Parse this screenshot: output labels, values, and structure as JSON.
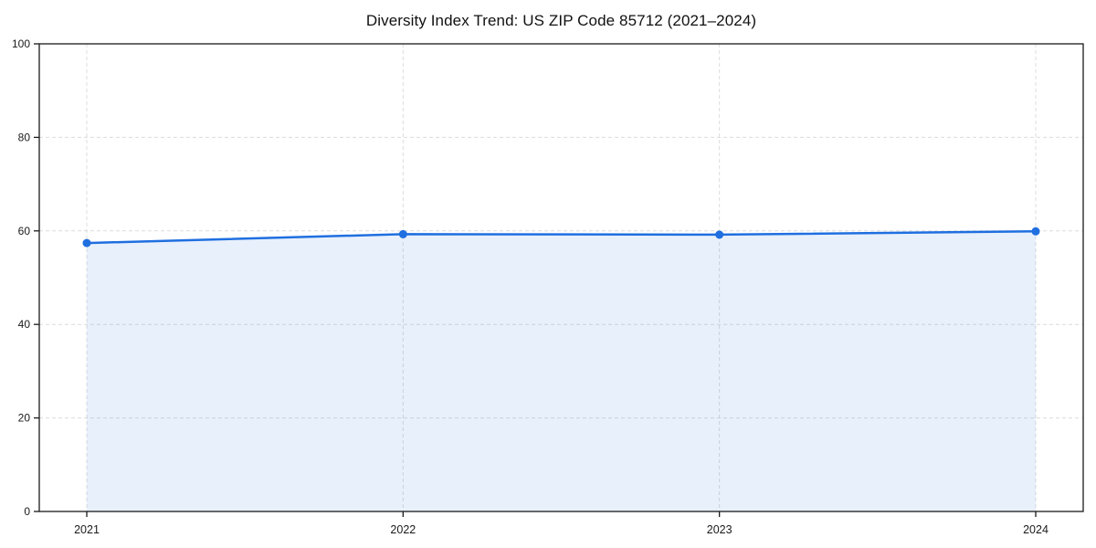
{
  "chart_data": {
    "type": "area",
    "title": "Diversity Index Trend: US ZIP Code 85712 (2021–2024)",
    "x": [
      "2021",
      "2022",
      "2023",
      "2024"
    ],
    "series": [
      {
        "name": "Diversity Index",
        "values": [
          57.4,
          59.3,
          59.2,
          59.9
        ]
      }
    ],
    "xlabel": "",
    "ylabel": "",
    "ylim": [
      0,
      100
    ],
    "yticks": [
      0,
      20,
      40,
      60,
      80,
      100
    ],
    "grid": true,
    "legend_position": "none",
    "line_color": "#1f6fe0",
    "marker_color": "#1f6fe0",
    "fill_color": "#e8f0fc",
    "fill_opacity": 0.1,
    "grid_color": "#dcdcdc",
    "axis_color": "#1a1a1a",
    "tick_label_color": "#1a1a1a",
    "background_color": "#ffffff"
  }
}
